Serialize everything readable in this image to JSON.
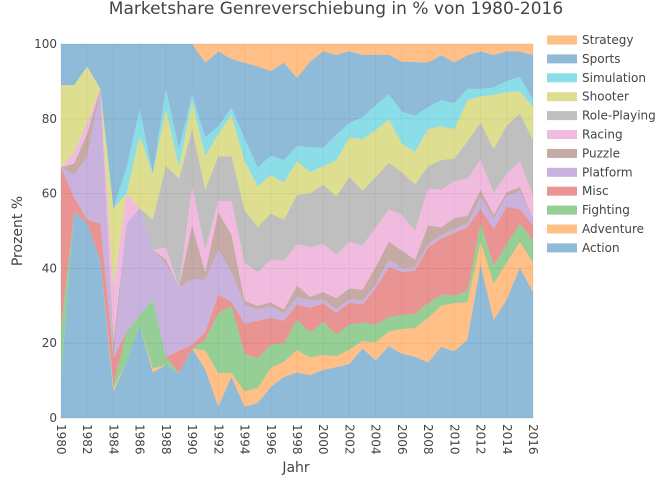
{
  "chart_data": {
    "type": "area",
    "stacking": "percent",
    "title": "Marketshare Genreverschiebung in % von 1980-2016",
    "xlabel": "Jahr",
    "ylabel": "Prozent %",
    "xlim": [
      1980,
      2016
    ],
    "ylim": [
      0,
      100
    ],
    "xticks": [
      1980,
      1982,
      1984,
      1986,
      1988,
      1990,
      1992,
      1994,
      1996,
      1998,
      2000,
      2002,
      2004,
      2006,
      2008,
      2010,
      2012,
      2014,
      2016
    ],
    "yticks": [
      0,
      20,
      40,
      60,
      80,
      100
    ],
    "grid": true,
    "legend_position": "right",
    "opacity": 0.5,
    "x": [
      1980,
      1981,
      1982,
      1983,
      1984,
      1985,
      1986,
      1987,
      1988,
      1989,
      1990,
      1991,
      1992,
      1993,
      1994,
      1995,
      1996,
      1997,
      1998,
      1999,
      2000,
      2001,
      2002,
      2003,
      2004,
      2005,
      2006,
      2007,
      2008,
      2009,
      2010,
      2011,
      2012,
      2013,
      2014,
      2015,
      2016
    ],
    "series": [
      {
        "name": "Action",
        "color": "#1f77b4",
        "values": [
          11,
          55,
          52,
          42,
          7,
          15,
          24,
          12,
          13,
          12,
          18,
          13,
          3,
          11,
          3,
          4,
          8,
          11,
          12,
          12,
          13,
          14,
          15,
          19,
          16,
          20,
          18,
          17,
          15,
          19,
          18,
          21,
          41,
          27,
          32,
          41,
          34
        ]
      },
      {
        "name": "Adventure",
        "color": "#ff7f0e",
        "values": [
          0,
          0,
          0,
          0,
          1,
          0,
          0,
          1,
          0,
          0,
          0,
          5,
          9,
          1,
          4,
          4,
          5,
          4,
          6,
          5,
          4,
          3,
          4,
          2,
          5,
          4,
          7,
          8,
          12,
          11,
          13,
          10,
          6,
          10,
          10,
          7,
          8
        ]
      },
      {
        "name": "Fighting",
        "color": "#2ca02c",
        "values": [
          13,
          0,
          0,
          0,
          1,
          8,
          3,
          18,
          2,
          0,
          0,
          3,
          16,
          18,
          10,
          8,
          6,
          5,
          8,
          7,
          9,
          6,
          7,
          5,
          5,
          4,
          4,
          4,
          4,
          3,
          2,
          3,
          5,
          5,
          5,
          5,
          6
        ]
      },
      {
        "name": "Misc",
        "color": "#d62728",
        "values": [
          43,
          4,
          1,
          10,
          7,
          0,
          0,
          0,
          0,
          6,
          1,
          2,
          5,
          1,
          8,
          10,
          7,
          6,
          4,
          7,
          5,
          6,
          6,
          5,
          10,
          14,
          12,
          12,
          15,
          15,
          17,
          17,
          4,
          10,
          10,
          4,
          4
        ]
      },
      {
        "name": "Platform",
        "color": "#9467bd",
        "values": [
          0,
          6,
          17,
          36,
          0,
          29,
          28,
          13,
          23,
          17,
          17,
          14,
          12,
          8,
          5,
          3,
          3,
          2,
          2,
          2,
          1,
          1,
          1,
          1,
          1,
          2,
          1,
          1,
          1,
          1,
          1,
          1,
          3,
          3,
          3,
          5,
          2
        ]
      },
      {
        "name": "Puzzle",
        "color": "#8c564b",
        "values": [
          0,
          3,
          6,
          0,
          4,
          0,
          0,
          0,
          1,
          0,
          14,
          2,
          10,
          10,
          1,
          1,
          1,
          1,
          3,
          1,
          2,
          3,
          3,
          3,
          5,
          5,
          5,
          2,
          5,
          2,
          3,
          2,
          2,
          1,
          1,
          1,
          0
        ]
      },
      {
        "name": "Racing",
        "color": "#e377c2",
        "values": [
          0,
          3,
          3,
          0,
          15,
          8,
          0,
          0,
          3,
          0,
          10,
          6,
          3,
          9,
          10,
          9,
          11,
          13,
          11,
          14,
          13,
          12,
          13,
          12,
          11,
          9,
          10,
          8,
          10,
          10,
          10,
          10,
          8,
          6,
          5,
          7,
          6
        ]
      },
      {
        "name": "Role-Playing",
        "color": "#7f7f7f",
        "values": [
          0,
          0,
          0,
          0,
          0,
          0,
          0,
          8,
          20,
          29,
          15,
          16,
          12,
          12,
          14,
          12,
          12,
          11,
          13,
          15,
          16,
          16,
          18,
          15,
          14,
          13,
          12,
          13,
          6,
          8,
          6,
          10,
          10,
          12,
          13,
          13,
          15
        ]
      },
      {
        "name": "Shooter",
        "color": "#bcbd22",
        "values": [
          22,
          18,
          15,
          0,
          21,
          0,
          19,
          12,
          14,
          3,
          7,
          9,
          6,
          11,
          13,
          11,
          10,
          10,
          9,
          6,
          5,
          10,
          11,
          14,
          13,
          12,
          8,
          9,
          10,
          9,
          8,
          11,
          7,
          15,
          9,
          6,
          9
        ]
      },
      {
        "name": "Simulation",
        "color": "#17becf",
        "values": [
          0,
          0,
          0,
          0,
          0,
          7,
          7,
          0,
          5,
          5,
          2,
          5,
          2,
          2,
          6,
          5,
          5,
          6,
          4,
          7,
          5,
          7,
          4,
          6,
          7,
          7,
          9,
          10,
          6,
          7,
          7,
          3,
          2,
          2,
          3,
          4,
          2
        ]
      },
      {
        "name": "Sports",
        "color": "#1f77b4",
        "values": [
          11,
          11,
          6,
          12,
          44,
          33,
          17,
          34,
          11,
          28,
          13,
          20,
          20,
          13,
          20,
          27,
          22,
          26,
          18,
          24,
          26,
          22,
          20,
          17,
          14,
          11,
          14,
          15,
          12,
          12,
          11,
          9,
          10,
          9,
          8,
          7,
          12
        ]
      },
      {
        "name": "Strategy",
        "color": "#ff7f0e",
        "values": [
          0,
          0,
          0,
          0,
          0,
          0,
          0,
          0,
          0,
          0,
          0,
          5,
          2,
          4,
          5,
          6,
          7,
          5,
          9,
          5,
          2,
          3,
          2,
          3,
          3,
          3,
          5,
          5,
          5,
          3,
          5,
          3,
          2,
          3,
          2,
          2,
          3
        ]
      }
    ]
  }
}
